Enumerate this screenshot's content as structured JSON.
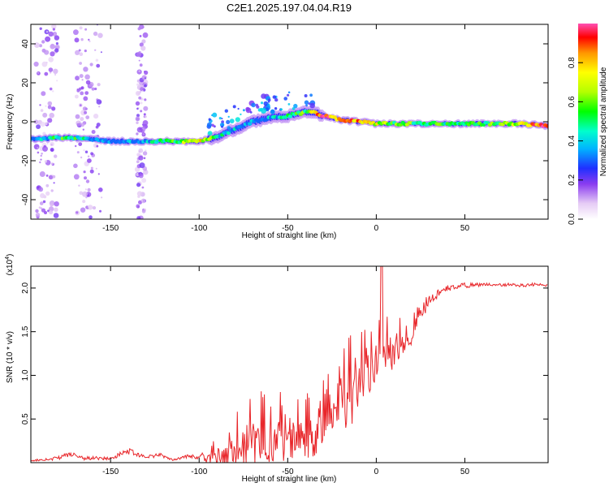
{
  "title": "C2E1.2025.197.04.04.R19",
  "colors": {
    "snr_line": "#e8262a",
    "frame": "#000000"
  },
  "chart_data": [
    {
      "type": "heatmap",
      "xlabel": "Height of straight line (km)",
      "ylabel": "Frequency (Hz)",
      "xlim": [
        -195,
        97
      ],
      "ylim": [
        -50,
        50
      ],
      "xticks": [
        -150,
        -100,
        -50,
        0,
        50
      ],
      "yticks": [
        -40,
        -20,
        0,
        20,
        40
      ],
      "colorbar": {
        "label": "Normalized spectral amplitude",
        "range": [
          0,
          1
        ],
        "ticks": [
          "0.0",
          "0.2",
          "0.4",
          "0.6",
          "0.8"
        ]
      },
      "ridge": {
        "x": [
          -195,
          -175,
          -160,
          -150,
          -130,
          -110,
          -100,
          -90,
          -80,
          -70,
          -60,
          -50,
          -40,
          -35,
          -30,
          -20,
          -10,
          0,
          10,
          20,
          40,
          60,
          80,
          97
        ],
        "y": [
          -9,
          -8,
          -9,
          -10,
          -10,
          -10,
          -10,
          -8,
          -4,
          0,
          2,
          3,
          5,
          5,
          3,
          1,
          0,
          -1,
          -1,
          -1,
          -1,
          -1,
          -1,
          -2
        ],
        "amplitude": [
          0.3,
          0.55,
          0.35,
          0.3,
          0.35,
          0.6,
          0.75,
          0.45,
          0.35,
          0.3,
          0.35,
          0.45,
          0.55,
          0.7,
          0.95,
          0.8,
          0.85,
          0.7,
          0.55,
          0.55,
          0.5,
          0.5,
          0.65,
          1.0
        ]
      }
    },
    {
      "type": "line",
      "xlabel": "Height of straight line (km)",
      "ylabel": "SNR (10 * v/v)",
      "y_multiplier": "(x10",
      "y_multiplier_exp": "4",
      "multiplier_close": ")",
      "xlim": [
        -195,
        97
      ],
      "ylim": [
        0,
        2.25
      ],
      "xticks": [
        -150,
        -100,
        -50,
        0,
        50
      ],
      "yticks": [
        0.5,
        1.0,
        1.5,
        2.0
      ],
      "series": [
        {
          "x": [
            -195,
            -180,
            -173,
            -165,
            -150,
            -140,
            -130,
            -122,
            -115,
            -105,
            -100,
            -92,
            -85,
            -80,
            -75,
            -70,
            -65,
            -60,
            -55,
            -50,
            -45,
            -40,
            -35,
            -30,
            -25,
            -20,
            -15,
            -10,
            -5,
            0,
            5,
            10,
            15,
            20,
            25,
            30,
            35,
            40,
            45,
            50,
            60,
            70,
            80,
            90,
            97
          ],
          "y": [
            0.02,
            0.05,
            0.1,
            0.05,
            0.05,
            0.14,
            0.06,
            0.09,
            0.03,
            0.08,
            0.05,
            0.12,
            0.2,
            0.3,
            0.35,
            0.42,
            0.4,
            0.4,
            0.45,
            0.35,
            0.45,
            0.4,
            0.5,
            0.55,
            0.75,
            0.9,
            1.0,
            1.1,
            1.15,
            1.3,
            1.35,
            1.4,
            1.45,
            1.55,
            1.75,
            1.85,
            1.95,
            2.0,
            2.02,
            2.03,
            2.04,
            2.04,
            2.03,
            2.04,
            2.02
          ],
          "spread": [
            0.01,
            0.02,
            0.03,
            0.02,
            0.02,
            0.04,
            0.02,
            0.02,
            0.01,
            0.02,
            0.03,
            0.15,
            0.25,
            0.35,
            0.4,
            0.45,
            0.5,
            0.45,
            0.45,
            0.35,
            0.45,
            0.45,
            0.5,
            0.55,
            0.6,
            0.6,
            0.55,
            0.5,
            0.45,
            0.45,
            0.4,
            0.35,
            0.3,
            0.2,
            0.12,
            0.08,
            0.05,
            0.04,
            0.03,
            0.03,
            0.02,
            0.02,
            0.02,
            0.02,
            0.02
          ]
        }
      ]
    }
  ]
}
